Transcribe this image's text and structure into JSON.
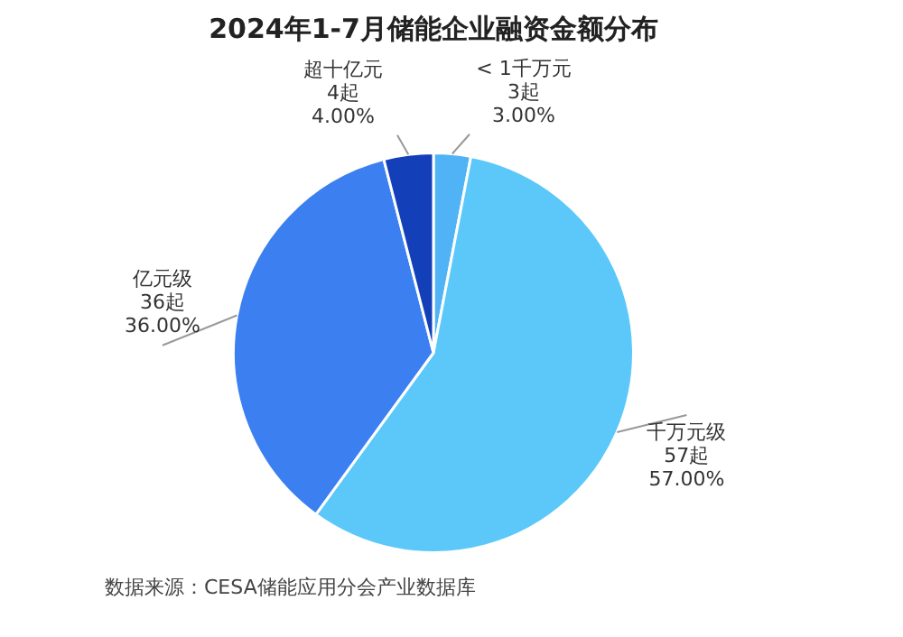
{
  "chart_data": {
    "type": "pie",
    "title": "2024年1-7月储能企业融资金额分布",
    "categories": [
      "< 1千万元",
      "千万元级",
      "亿元级",
      "超十亿元"
    ],
    "values": [
      3,
      57,
      36,
      4
    ],
    "value_labels": [
      "3起\n3.00%",
      "57起\n57.00%",
      "36起\n36.00%",
      "4起\n4.00%"
    ],
    "colors": [
      "#4fb3f6",
      "#5cc8fa",
      "#3b7ff0",
      "#1340b8"
    ],
    "legend": false,
    "annotations": [
      "数据来源：CESA储能应用分会产业数据库"
    ]
  }
}
